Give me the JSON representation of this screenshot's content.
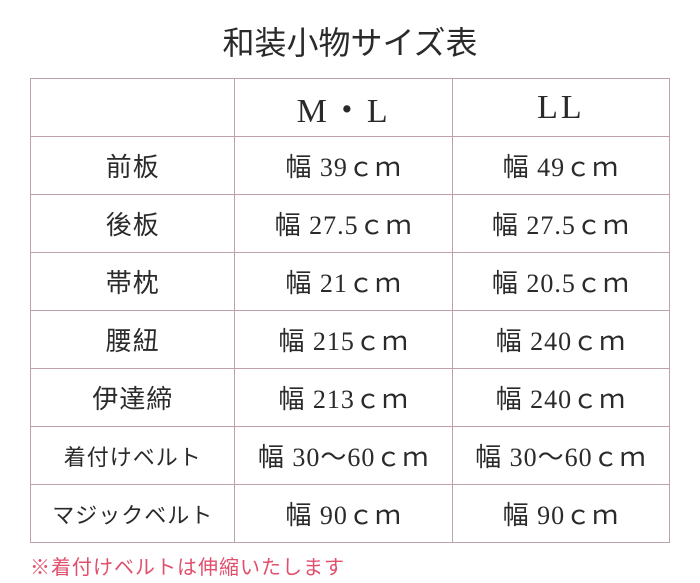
{
  "title": "和装小物サイズ表",
  "columns": [
    "",
    "M・L",
    "LL"
  ],
  "rows": [
    {
      "label": "前板",
      "ml": "幅 39ｃｍ",
      "ll": "幅 49ｃｍ",
      "small": false
    },
    {
      "label": "後板",
      "ml": "幅 27.5ｃｍ",
      "ll": "幅 27.5ｃｍ",
      "small": false
    },
    {
      "label": "帯枕",
      "ml": "幅 21ｃｍ",
      "ll": "幅 20.5ｃｍ",
      "small": false
    },
    {
      "label": "腰紐",
      "ml": "幅 215ｃｍ",
      "ll": "幅 240ｃｍ",
      "small": false
    },
    {
      "label": "伊達締",
      "ml": "幅 213ｃｍ",
      "ll": "幅 240ｃｍ",
      "small": false
    },
    {
      "label": "着付けベルト",
      "ml": "幅 30～60ｃｍ",
      "ll": "幅 30～60ｃｍ",
      "small": true
    },
    {
      "label": "マジックベルト",
      "ml": "幅 90ｃｍ",
      "ll": "幅 90ｃｍ",
      "small": true
    }
  ],
  "footnote": "※着付けベルトは伸縮いたします",
  "colors": {
    "border": "#bfa1ab",
    "text": "#2a2a2a",
    "footnote": "#e0506d",
    "background": "#ffffff"
  }
}
